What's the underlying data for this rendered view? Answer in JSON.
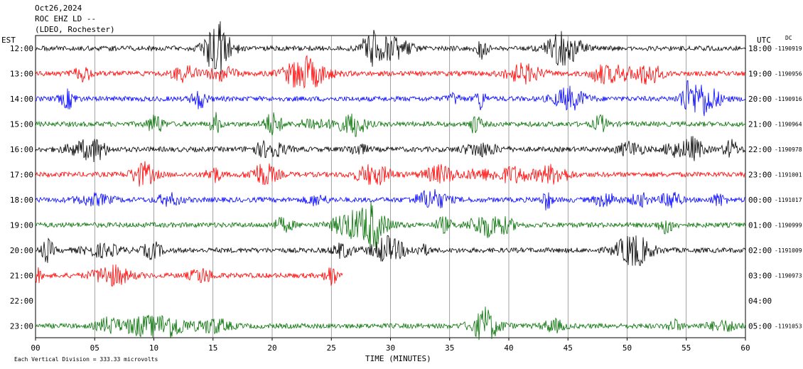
{
  "header": {
    "date": "Oct26,2024",
    "channel": "ROC EHZ LD --",
    "station": "(LDEO, Rochester)"
  },
  "chart_data": {
    "type": "helicorder",
    "title": "Oct26,2024",
    "left_axis_label": "EST",
    "right_axis_label": "UTC",
    "dc_label": "DC",
    "xlabel": "TIME (MINUTES)",
    "xlim": [
      0,
      60
    ],
    "x_ticks": [
      "00",
      "05",
      "10",
      "15",
      "20",
      "25",
      "30",
      "35",
      "40",
      "45",
      "50",
      "55",
      "60"
    ],
    "scale_note": "Each Vertical Division = 333.33 microvolts",
    "trace_colors": [
      "#000000",
      "#ff0000",
      "#0000ff",
      "#007000"
    ],
    "rows": [
      {
        "est": "12:00",
        "utc": "18:00",
        "dc": "1190919",
        "start": 0,
        "end": 60
      },
      {
        "est": "13:00",
        "utc": "19:00",
        "dc": "1190956",
        "start": 0,
        "end": 60
      },
      {
        "est": "14:00",
        "utc": "20:00",
        "dc": "1190916",
        "start": 0,
        "end": 60
      },
      {
        "est": "15:00",
        "utc": "21:00",
        "dc": "1190964",
        "start": 0,
        "end": 60
      },
      {
        "est": "16:00",
        "utc": "22:00",
        "dc": "1190978",
        "start": 0,
        "end": 60
      },
      {
        "est": "17:00",
        "utc": "23:00",
        "dc": "1191001",
        "start": 0,
        "end": 60
      },
      {
        "est": "18:00",
        "utc": "00:00",
        "dc": "1191017",
        "start": 0,
        "end": 60
      },
      {
        "est": "19:00",
        "utc": "01:00",
        "dc": "1190999",
        "start": 0,
        "end": 60
      },
      {
        "est": "20:00",
        "utc": "02:00",
        "dc": "1191009",
        "start": 0,
        "end": 60
      },
      {
        "est": "21:00",
        "utc": "03:00",
        "dc": "1190973",
        "start": 0,
        "end": 26
      },
      {
        "est": "22:00",
        "utc": "04:00",
        "dc": "",
        "start": 0,
        "end": 0
      },
      {
        "est": "23:00",
        "utc": "05:00",
        "dc": "1191053",
        "start": 0,
        "end": 60
      }
    ]
  }
}
